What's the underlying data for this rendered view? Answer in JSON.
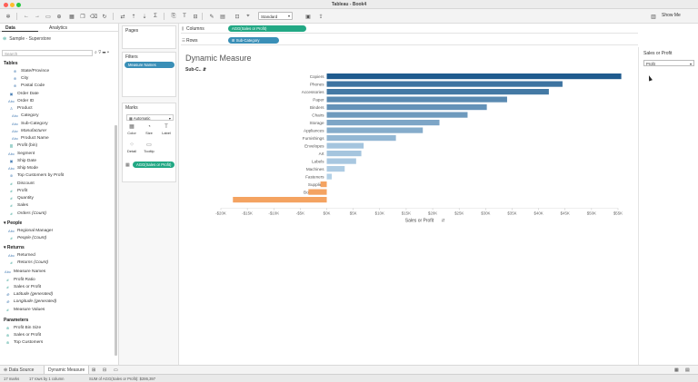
{
  "window": {
    "title": "Tableau - Book4"
  },
  "toolbar": {
    "format_select": "Standard",
    "show_me_label": "Show Me"
  },
  "left_panel": {
    "tabs": [
      "Data",
      "Analytics"
    ],
    "datasource": "Sample - Superstore",
    "search_placeholder": "Search",
    "tables_header": "Tables",
    "tables_fields": [
      {
        "label": "State/Province",
        "icon": "globe",
        "indent": 2,
        "italic": false
      },
      {
        "label": "City",
        "icon": "globe",
        "indent": 2,
        "italic": false
      },
      {
        "label": "Postal Code",
        "icon": "globe",
        "indent": 2,
        "italic": false
      },
      {
        "label": "Order Date",
        "icon": "date",
        "indent": 1,
        "italic": false
      },
      {
        "label": "Order ID",
        "icon": "abc",
        "indent": 1,
        "italic": false
      },
      {
        "label": "Product",
        "icon": "hierarchy",
        "indent": 1,
        "italic": false
      },
      {
        "label": "Category",
        "icon": "abc",
        "indent": 2,
        "italic": false
      },
      {
        "label": "Sub-Category",
        "icon": "abc",
        "indent": 2,
        "italic": false
      },
      {
        "label": "Manufacturer",
        "icon": "abc",
        "indent": 2,
        "italic": true
      },
      {
        "label": "Product Name",
        "icon": "abc",
        "indent": 2,
        "italic": false
      },
      {
        "label": "Profit (bin)",
        "icon": "bin",
        "indent": 1,
        "italic": false
      },
      {
        "label": "Segment",
        "icon": "abc",
        "indent": 1,
        "italic": false
      },
      {
        "label": "Ship Date",
        "icon": "date",
        "indent": 1,
        "italic": false
      },
      {
        "label": "Ship Mode",
        "icon": "abc",
        "indent": 1,
        "italic": false
      },
      {
        "label": "Top Customers by Profit",
        "icon": "set",
        "indent": 1,
        "italic": false
      },
      {
        "label": "Discount",
        "icon": "measure",
        "indent": 1,
        "italic": false
      },
      {
        "label": "Profit",
        "icon": "measure",
        "indent": 1,
        "italic": false
      },
      {
        "label": "Quantity",
        "icon": "measure",
        "indent": 1,
        "italic": false
      },
      {
        "label": "Sales",
        "icon": "measure",
        "indent": 1,
        "italic": false
      },
      {
        "label": "Orders (Count)",
        "icon": "measure",
        "indent": 1,
        "italic": true
      }
    ],
    "people_header": "People",
    "people_fields": [
      {
        "label": "Regional Manager",
        "icon": "abc",
        "indent": 1,
        "italic": false
      },
      {
        "label": "People (Count)",
        "icon": "measure",
        "indent": 1,
        "italic": true
      }
    ],
    "returns_header": "Returns",
    "returns_fields": [
      {
        "label": "Returned",
        "icon": "abc",
        "indent": 1,
        "italic": false
      },
      {
        "label": "Returns (Count)",
        "icon": "measure",
        "indent": 1,
        "italic": true
      }
    ],
    "other_fields": [
      {
        "label": "Measure Names",
        "icon": "abc",
        "indent": 0,
        "italic": false
      },
      {
        "label": "Profit Ratio",
        "icon": "measure",
        "indent": 0,
        "italic": false
      },
      {
        "label": "Sales or Profit",
        "icon": "measure",
        "indent": 0,
        "italic": false
      },
      {
        "label": "Latitude (generated)",
        "icon": "globe",
        "indent": 0,
        "italic": true
      },
      {
        "label": "Longitude (generated)",
        "icon": "globe",
        "indent": 0,
        "italic": true
      },
      {
        "label": "Measure Values",
        "icon": "measure",
        "indent": 0,
        "italic": false
      }
    ],
    "parameters_header": "Parameters",
    "parameters": [
      {
        "label": "Profit Bin Size",
        "icon": "param",
        "indent": 0,
        "italic": false
      },
      {
        "label": "Sales or Profit",
        "icon": "param",
        "indent": 0,
        "italic": false
      },
      {
        "label": "Top Customers",
        "icon": "param",
        "indent": 0,
        "italic": false
      }
    ]
  },
  "cards": {
    "pages_title": "Pages",
    "filters_title": "Filters",
    "filter_pill": "Measure Names",
    "marks_title": "Marks",
    "marks_type": "Automatic",
    "marks_buttons": [
      {
        "label": "Color",
        "glyph": "▦"
      },
      {
        "label": "Size",
        "glyph": "◔"
      },
      {
        "label": "Label",
        "glyph": "T"
      },
      {
        "label": "Detail",
        "glyph": "⁘"
      },
      {
        "label": "Tooltip",
        "glyph": "▭"
      }
    ],
    "marks_pill": "AGG(Sales or Profit)"
  },
  "shelves": {
    "columns_label": "Columns",
    "columns_pill": "AGG(Sales or Profit)",
    "rows_label": "Rows",
    "rows_pill": "Sub-Category"
  },
  "sheet": {
    "title": "Dynamic Measure",
    "row_header": "Sub-C..",
    "x_axis_title": "Sales or Profit"
  },
  "right_panel": {
    "param_title": "Sales or Profit",
    "param_value": "Profit"
  },
  "chart_data": {
    "type": "bar",
    "orientation": "horizontal",
    "title": "Dynamic Measure",
    "xlabel": "Sales or Profit",
    "ylabel": "",
    "categories": [
      "Copiers",
      "Phones",
      "Accessories",
      "Paper",
      "Binders",
      "Chairs",
      "Storage",
      "Appliances",
      "Furnishings",
      "Envelopes",
      "Art",
      "Labels",
      "Machines",
      "Fasteners",
      "Supplies",
      "Bookcases",
      "Tables"
    ],
    "values": [
      55618,
      44516,
      41937,
      34054,
      30222,
      26590,
      21279,
      18138,
      13059,
      6964,
      6528,
      5546,
      3385,
      950,
      -1189,
      -3473,
      -17725
    ],
    "xlim": [
      -20000,
      55000
    ],
    "xticks": [
      -20000,
      -15000,
      -10000,
      -5000,
      0,
      5000,
      10000,
      15000,
      20000,
      25000,
      30000,
      35000,
      40000,
      45000,
      50000,
      55000
    ],
    "xtick_labels": [
      "-$20K",
      "-$15K",
      "-$10K",
      "-$5K",
      "$0K",
      "$5K",
      "$10K",
      "$15K",
      "$20K",
      "$25K",
      "$30K",
      "$35K",
      "$40K",
      "$45K",
      "$50K",
      "$55K"
    ],
    "color_scale": {
      "negative": "#f4a361",
      "positive_light": "#b7d3e9",
      "positive_dark": "#1f5b8e"
    },
    "grid": false
  },
  "bottom_tabs": {
    "datasource": "Data Source",
    "sheet": "Dynamic Measure"
  },
  "status": {
    "marks": "17 marks",
    "rows_cols": "17 rows by 1 column",
    "sum": "SUM of AGG(Sales or Profit): $286,397"
  }
}
